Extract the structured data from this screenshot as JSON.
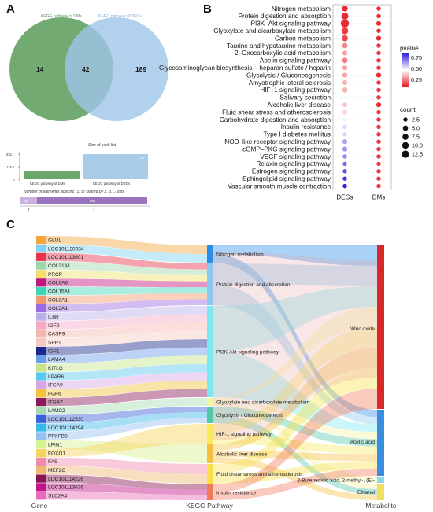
{
  "panels": {
    "a": "A",
    "b": "B",
    "c": "C"
  },
  "venn": {
    "left_label": "KEGG pathway of DMs",
    "right_label": "KEGG pathway of DEGs",
    "left_only": "14",
    "overlap": "42",
    "right_only": "189",
    "left_color": "#6aa56a",
    "right_color": "#9fc5e8"
  },
  "upset": {
    "size_title": "Size of each list",
    "ticks": [
      "231",
      "115.5",
      "0"
    ],
    "bars": [
      {
        "label": "KEGG pathway of DMs",
        "value": "56"
      },
      {
        "label": "KEGG pathway of DEGs",
        "value": "231"
      }
    ],
    "elements_title": "Number of elements: specific (1) or shared by 2, 3, ... lists",
    "segments": [
      {
        "value": "42"
      },
      {
        "value": "203"
      }
    ],
    "seg_ticks": [
      "2",
      "1"
    ]
  },
  "chart_data": {
    "type": "scatter",
    "x": [
      "DEGs",
      "DMs"
    ],
    "categories": [
      "Nitrogen metabolism",
      "Protein digestion and absorption",
      "PI3K–Akt signaling pathway",
      "Glyoxylate and dicarboxylate metabolism",
      "Carbon metabolism",
      "Taurine and hypotaurine metabolism",
      "2–Oxocarboxylic acid metabolism",
      "Apelin signaling pathway",
      "Glycosaminoglycan biosynthesis – heparan sulfate / heparin",
      "Glycolysis / Gluconeogenesis",
      "Amyotrophic lateral sclerosis",
      "HIF–1 signaling pathway",
      "Salivary secretion",
      "Alcoholic liver disease",
      "Fluid shear stress and atherosclerosis",
      "Carbohydrate digestion and absorption",
      "Insulin resistance",
      "Type I diabetes mellitus",
      "NOD–like receptor signaling pathway",
      "cGMP–PKG signaling pathway",
      "VEGF signaling pathway",
      "Relaxin signaling pathway",
      "Estrogen signaling pathway",
      "Sphingolipid signaling pathway",
      "Vascular smooth muscle contraction"
    ],
    "series": [
      {
        "name": "DEGs",
        "count": [
          5,
          9,
          13,
          8,
          6,
          4,
          3,
          4,
          3,
          3,
          3,
          4,
          null,
          3,
          3,
          2,
          2,
          2,
          3,
          3,
          2,
          2,
          2,
          2,
          2
        ],
        "pvalue": [
          0.02,
          0.02,
          0.02,
          0.05,
          0.08,
          0.2,
          0.25,
          0.18,
          0.25,
          0.25,
          0.28,
          0.28,
          null,
          0.32,
          0.35,
          0.45,
          0.5,
          0.5,
          0.6,
          0.62,
          0.65,
          0.7,
          0.75,
          0.8,
          0.85
        ]
      },
      {
        "name": "DMs",
        "count": [
          2,
          2,
          3,
          2,
          3,
          2,
          2,
          2,
          2,
          3,
          2,
          2,
          2,
          3,
          2,
          2,
          2,
          2,
          2,
          2,
          2,
          2,
          2,
          2,
          2
        ],
        "pvalue": [
          0.02,
          0.02,
          0.03,
          0.03,
          0.02,
          0.05,
          0.05,
          0.05,
          0.05,
          0.02,
          0.05,
          0.05,
          0.05,
          0.02,
          0.05,
          0.05,
          0.05,
          0.05,
          0.05,
          0.05,
          0.05,
          0.05,
          0.05,
          0.05,
          0.05
        ]
      }
    ],
    "legend": {
      "pvalue_title": "pvalue",
      "pvalue_ticks": [
        "0.75",
        "0.50",
        "0.25"
      ],
      "count_title": "count",
      "count_ticks": [
        "2.5",
        "5.0",
        "7.5",
        "10.0",
        "12.5"
      ]
    }
  },
  "sankey": {
    "axis_titles": [
      "Gene",
      "KEGG Pathway",
      "Metabolite"
    ],
    "genes": [
      {
        "name": "GLUL",
        "color": "#f4a63d"
      },
      {
        "name": "LOC101120934",
        "color": "#7fd3f0"
      },
      {
        "name": "LOC101113601",
        "color": "#e6344a"
      },
      {
        "name": "COL21A1",
        "color": "#9fd8a8"
      },
      {
        "name": "PRCP",
        "color": "#f2e06a"
      },
      {
        "name": "COL6A6",
        "color": "#c2177e"
      },
      {
        "name": "COL15A1",
        "color": "#3fd6b8"
      },
      {
        "name": "COL8A1",
        "color": "#f29a6b"
      },
      {
        "name": "COL3A1",
        "color": "#9b6be0"
      },
      {
        "name": "IL6R",
        "color": "#b8b0e8"
      },
      {
        "name": "IGF2",
        "color": "#f6a8c8"
      },
      {
        "name": "CASP9",
        "color": "#f4b8b0"
      },
      {
        "name": "SPP1",
        "color": "#f6c9c0"
      },
      {
        "name": "IGF1",
        "color": "#1a2a8a"
      },
      {
        "name": "LAMA4",
        "color": "#6b9ee8"
      },
      {
        "name": "KITLG",
        "color": "#c6e58a"
      },
      {
        "name": "LPAR6",
        "color": "#59c7ee"
      },
      {
        "name": "ITGA9",
        "color": "#d6a6e6"
      },
      {
        "name": "FGF6",
        "color": "#f2c33c"
      },
      {
        "name": "ITGA7",
        "color": "#8a1a5a"
      },
      {
        "name": "LAMC2",
        "color": "#a6dcb4"
      },
      {
        "name": "LOC101112530",
        "color": "#3a5fd8"
      },
      {
        "name": "LOC101114294",
        "color": "#3ab8e8"
      },
      {
        "name": "PFKFB3",
        "color": "#93c0f0"
      },
      {
        "name": "LPIN1",
        "color": "#d6f28c"
      },
      {
        "name": "FOXO1",
        "color": "#f6d35a"
      },
      {
        "name": "FAS",
        "color": "#f28ab0"
      },
      {
        "name": "MEF2C",
        "color": "#f0b870"
      },
      {
        "name": "LOC101114226",
        "color": "#8a1450"
      },
      {
        "name": "LOC101113636",
        "color": "#c0148a"
      },
      {
        "name": "SLC2A4",
        "color": "#e86ab8"
      }
    ],
    "pathways": [
      {
        "name": "Nitrogen metabolism",
        "color": "#2a8ee8"
      },
      {
        "name": "Protein digestion and absorption",
        "color": "#8ac8f0"
      },
      {
        "name": "PI3K-Akt signaling pathway",
        "color": "#7ee8f0"
      },
      {
        "name": "Glyoxylate and dicarboxylate metabolism",
        "color": "#f4f4a0"
      },
      {
        "name": "Glycolysis / Gluconeogenesis",
        "color": "#4fc8a8"
      },
      {
        "name": "HIF-1 signaling pathway",
        "color": "#f8e860"
      },
      {
        "name": "Alcoholic liver disease",
        "color": "#f4c040"
      },
      {
        "name": "Fluid shear stress and atherosclerosis",
        "color": "#f8e048"
      },
      {
        "name": "Insulin resistance",
        "color": "#f07a5a"
      }
    ],
    "metabolites": [
      {
        "name": "Nitric oxide",
        "color": "#d8282a"
      },
      {
        "name": "Acetic acid",
        "color": "#3a8ee0"
      },
      {
        "name": "2-Butenedioic acid, 2-methyl-, (E)-",
        "color": "#8ad8e8"
      },
      {
        "name": "Ethanol",
        "color": "#f0e060"
      }
    ]
  }
}
